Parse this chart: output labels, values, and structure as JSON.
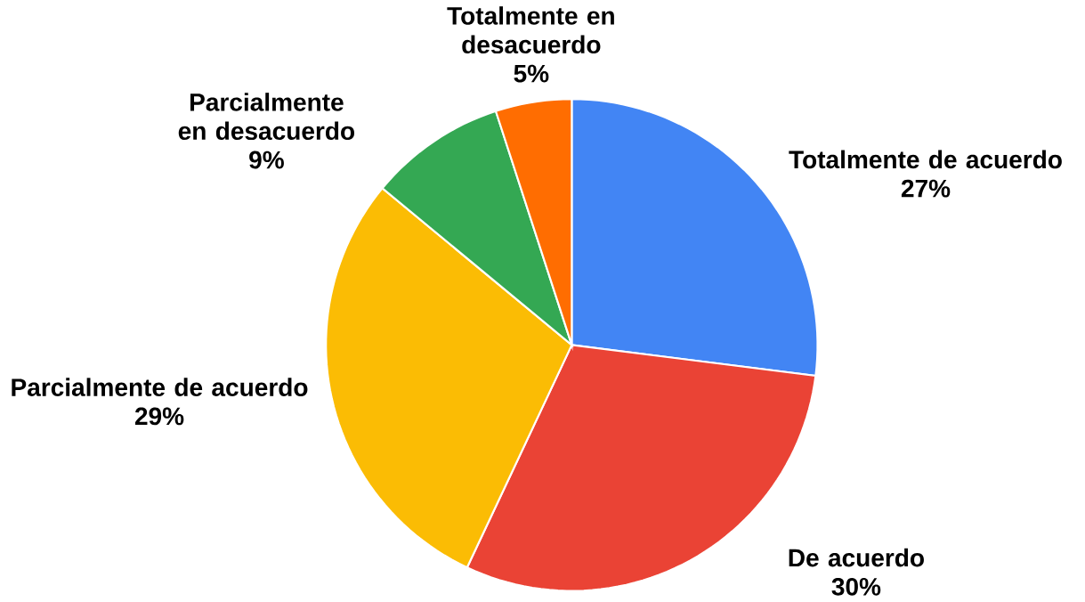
{
  "chart_data": {
    "type": "pie",
    "categories": [
      "Totalmente de acuerdo",
      "De acuerdo",
      "Parcialmente de acuerdo",
      "Parcialmente en desacuerdo",
      "Totalmente en desacuerdo"
    ],
    "values": [
      27,
      30,
      29,
      9,
      5
    ],
    "value_labels": [
      "27%",
      "30%",
      "29%",
      "9%",
      "5%"
    ],
    "colors": [
      "#4285f4",
      "#ea4335",
      "#fbbc04",
      "#34a853",
      "#ff6d01"
    ]
  }
}
